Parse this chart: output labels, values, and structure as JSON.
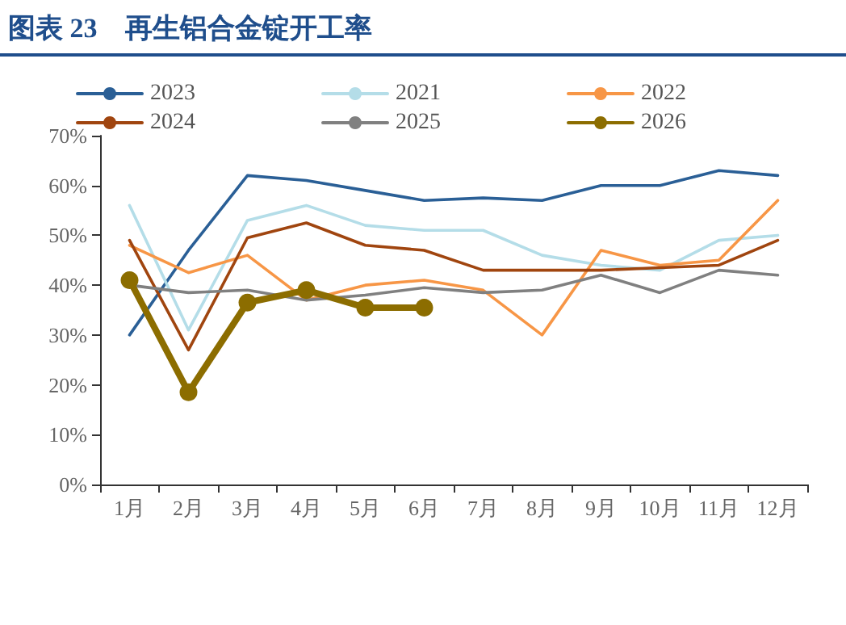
{
  "chart_data": {
    "type": "line",
    "title": "图表 23　再生铝合金锭开工率",
    "categories": [
      "1月",
      "2月",
      "3月",
      "4月",
      "5月",
      "6月",
      "7月",
      "8月",
      "9月",
      "10月",
      "11月",
      "12月"
    ],
    "series": [
      {
        "name": "2023",
        "color": "#2a5f96",
        "values": [
          30,
          47,
          62,
          61,
          59,
          57,
          57.5,
          57,
          60,
          60,
          63,
          62
        ]
      },
      {
        "name": "2021",
        "color": "#b4dde8",
        "values": [
          56,
          31,
          53,
          56,
          52,
          51,
          51,
          46,
          44,
          43,
          49,
          50
        ]
      },
      {
        "name": "2022",
        "color": "#f79646",
        "values": [
          48,
          42.5,
          46,
          37,
          40,
          41,
          39,
          30,
          47,
          44,
          45,
          57
        ]
      },
      {
        "name": "2024",
        "color": "#a0450f",
        "values": [
          49,
          27,
          49.5,
          52.5,
          48,
          47,
          43,
          43,
          43,
          43.5,
          44,
          49
        ]
      },
      {
        "name": "2025",
        "color": "#808080",
        "values": [
          40,
          38.5,
          39,
          37,
          38,
          39.5,
          38.5,
          39,
          42,
          38.5,
          43,
          42
        ]
      },
      {
        "name": "2026",
        "color": "#8c6d00",
        "values": [
          41,
          18.5,
          36.5,
          39,
          35.5,
          35.5,
          null,
          null,
          null,
          null,
          null,
          null
        ],
        "marker": "circle"
      }
    ],
    "ylim": [
      0,
      70
    ],
    "yticks": [
      {
        "value": 0,
        "label": "0%"
      },
      {
        "value": 10,
        "label": "10%"
      },
      {
        "value": 20,
        "label": "20%"
      },
      {
        "value": 30,
        "label": "30%"
      },
      {
        "value": 40,
        "label": "40%"
      },
      {
        "value": 50,
        "label": "50%"
      },
      {
        "value": 60,
        "label": "60%"
      },
      {
        "value": 70,
        "label": "70%"
      }
    ],
    "grid": false,
    "legend": "top",
    "marker": "none"
  }
}
